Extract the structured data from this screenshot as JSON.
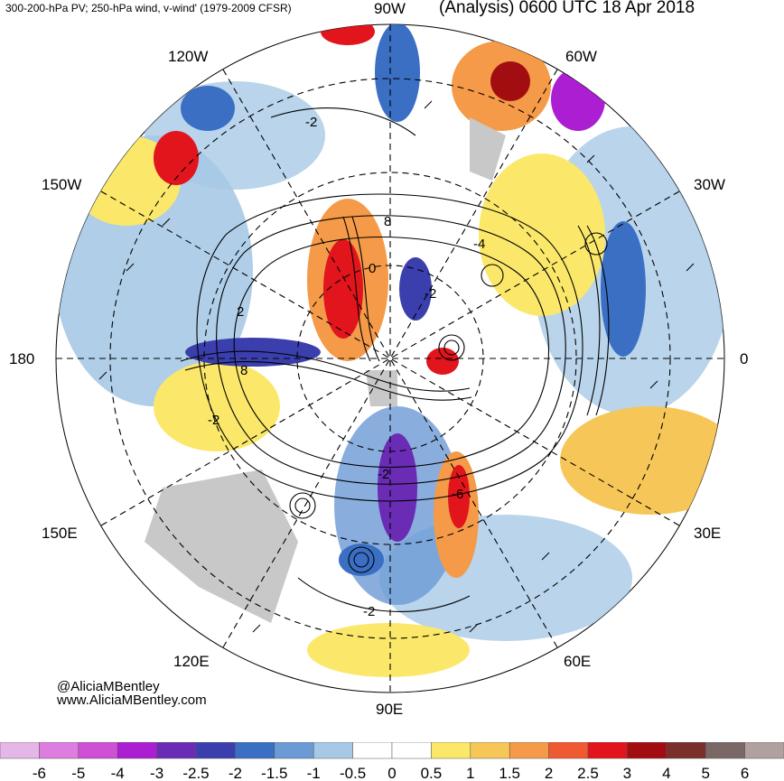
{
  "header": {
    "left": "300-200-hPa PV; 250-hPa wind, v-wind' (1979-2009 CFSR)",
    "right": "(Analysis) 0600 UTC 18 Apr 2018"
  },
  "longitudes": [
    "90W",
    "120W",
    "60W",
    "150W",
    "30W",
    "180",
    "0",
    "150E",
    "30E",
    "120E",
    "60E",
    "90E"
  ],
  "contour_labels": [
    "-2",
    "8",
    "-4",
    "0",
    "2",
    "8",
    "-2",
    "-2",
    "-2",
    "-6",
    "-2"
  ],
  "credits": {
    "handle": "@AliciaMBentley",
    "website": "www.AliciaMBentley.com"
  },
  "colorbar": {
    "ticks": [
      "-6",
      "-5",
      "-4",
      "-3",
      "-2.5",
      "-2",
      "-1.5",
      "-1",
      "-0.5",
      "0",
      "0.5",
      "1",
      "1.5",
      "2",
      "2.5",
      "3",
      "4",
      "5",
      "6"
    ],
    "colors": [
      "#e5b6e8",
      "#dd7ddf",
      "#cf4fd6",
      "#ab1ed1",
      "#6b2cb5",
      "#3b3fad",
      "#3a6fc4",
      "#6c9ad4",
      "#a7c9e6",
      "#ffffff",
      "#ffffff",
      "#fbe86a",
      "#f6c658",
      "#f49a48",
      "#f05a33",
      "#e2141c",
      "#a20d12",
      "#7a2f2a",
      "#7a6766",
      "#b0a0a0"
    ]
  },
  "colors": {
    "positive": "#f05a33",
    "negative": "#3b3fad",
    "land_gray": "#c8c8c8"
  }
}
